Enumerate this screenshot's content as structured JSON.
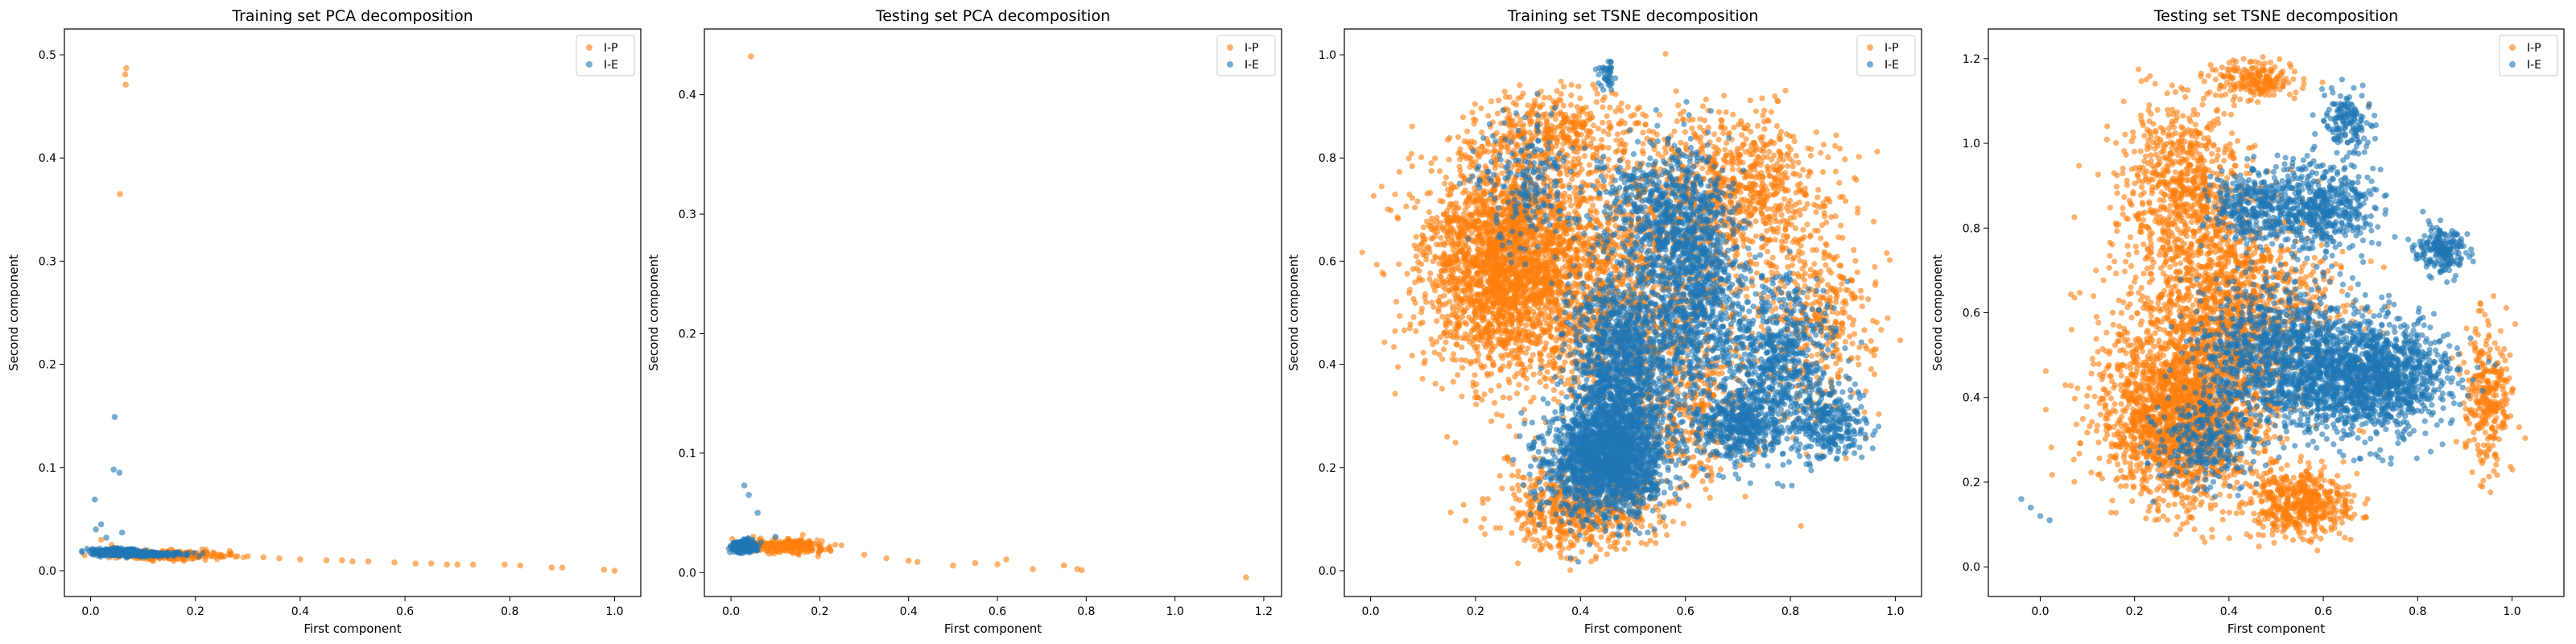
{
  "colors": {
    "ip": "#ff7f0e",
    "ie": "#1f77b4",
    "axis": "#000000",
    "legend_border": "#cccccc"
  },
  "chart_data": [
    {
      "type": "scatter",
      "title": "Training set PCA decomposition",
      "xlabel": "First component",
      "ylabel": "Second component",
      "xlim": [
        -0.05,
        1.05
      ],
      "ylim": [
        -0.025,
        0.525
      ],
      "xticks": [
        0.0,
        0.2,
        0.4,
        0.6,
        0.8,
        1.0
      ],
      "yticks": [
        0.0,
        0.1,
        0.2,
        0.3,
        0.4,
        0.5
      ],
      "grid": false,
      "legend_position": "top-right",
      "series": [
        {
          "name": "I-P",
          "color": "#ff7f0e",
          "points": [
            [
              0.068,
              0.487
            ],
            [
              0.066,
              0.481
            ],
            [
              0.067,
              0.471
            ],
            [
              0.056,
              0.365
            ],
            [
              0.02,
              0.03
            ],
            [
              0.04,
              0.025
            ],
            [
              0.05,
              0.022
            ],
            [
              0.08,
              0.02
            ],
            [
              0.1,
              0.019
            ],
            [
              0.12,
              0.018
            ],
            [
              0.15,
              0.017
            ],
            [
              0.18,
              0.016
            ],
            [
              0.2,
              0.016
            ],
            [
              0.22,
              0.015
            ],
            [
              0.25,
              0.015
            ],
            [
              0.28,
              0.014
            ],
            [
              0.3,
              0.014
            ],
            [
              0.33,
              0.013
            ],
            [
              0.36,
              0.012
            ],
            [
              0.4,
              0.011
            ],
            [
              0.45,
              0.01
            ],
            [
              0.48,
              0.01
            ],
            [
              0.5,
              0.009
            ],
            [
              0.53,
              0.009
            ],
            [
              0.58,
              0.008
            ],
            [
              0.62,
              0.007
            ],
            [
              0.65,
              0.007
            ],
            [
              0.68,
              0.006
            ],
            [
              0.7,
              0.006
            ],
            [
              0.73,
              0.006
            ],
            [
              0.79,
              0.006
            ],
            [
              0.82,
              0.005
            ],
            [
              0.88,
              0.003
            ],
            [
              0.9,
              0.003
            ],
            [
              0.98,
              0.001
            ],
            [
              1.0,
              0.0
            ]
          ],
          "clusters": [
            [
              0.15,
              0.015,
              0.1,
              0.004,
              240
            ]
          ]
        },
        {
          "name": "I-E",
          "color": "#1f77b4",
          "points": [
            [
              0.046,
              0.149
            ],
            [
              0.044,
              0.098
            ],
            [
              0.055,
              0.095
            ],
            [
              0.008,
              0.069
            ],
            [
              0.06,
              0.037
            ],
            [
              0.03,
              0.032
            ],
            [
              0.01,
              0.04
            ],
            [
              0.02,
              0.045
            ]
          ],
          "clusters": [
            [
              0.05,
              0.018,
              0.04,
              0.003,
              400
            ],
            [
              0.12,
              0.016,
              0.06,
              0.002,
              150
            ]
          ]
        }
      ]
    },
    {
      "type": "scatter",
      "title": "Testing set PCA decomposition",
      "xlabel": "First component",
      "ylabel": "Second component",
      "xlim": [
        -0.06,
        1.24
      ],
      "ylim": [
        -0.02,
        0.455
      ],
      "xticks": [
        0.0,
        0.2,
        0.4,
        0.6,
        0.8,
        1.0,
        1.2
      ],
      "yticks": [
        0.0,
        0.1,
        0.2,
        0.3,
        0.4
      ],
      "grid": false,
      "legend_position": "top-right",
      "series": [
        {
          "name": "I-P",
          "color": "#ff7f0e",
          "points": [
            [
              0.045,
              0.432
            ],
            [
              0.05,
              0.03
            ],
            [
              0.1,
              0.025
            ],
            [
              0.15,
              0.022
            ],
            [
              0.2,
              0.018
            ],
            [
              0.22,
              0.02
            ],
            [
              0.3,
              0.015
            ],
            [
              0.35,
              0.012
            ],
            [
              0.4,
              0.01
            ],
            [
              0.42,
              0.009
            ],
            [
              0.5,
              0.006
            ],
            [
              0.55,
              0.008
            ],
            [
              0.6,
              0.007
            ],
            [
              0.62,
              0.011
            ],
            [
              0.68,
              0.003
            ],
            [
              0.75,
              0.006
            ],
            [
              0.78,
              0.003
            ],
            [
              0.79,
              0.002
            ],
            [
              1.16,
              -0.004
            ]
          ],
          "clusters": [
            [
              0.12,
              0.022,
              0.08,
              0.005,
              220
            ]
          ]
        },
        {
          "name": "I-E",
          "color": "#1f77b4",
          "points": [
            [
              0.03,
              0.073
            ],
            [
              0.04,
              0.065
            ],
            [
              0.06,
              0.05
            ],
            [
              0.1,
              0.03
            ]
          ],
          "clusters": [
            [
              0.03,
              0.022,
              0.025,
              0.004,
              320
            ]
          ]
        }
      ]
    },
    {
      "type": "scatter",
      "title": "Training set TSNE decomposition",
      "xlabel": "First component",
      "ylabel": "Second component",
      "xlim": [
        -0.05,
        1.05
      ],
      "ylim": [
        -0.05,
        1.05
      ],
      "xticks": [
        0.0,
        0.2,
        0.4,
        0.6,
        0.8,
        1.0
      ],
      "yticks": [
        0.0,
        0.2,
        0.4,
        0.6,
        0.8,
        1.0
      ],
      "grid": false,
      "legend_position": "top-right",
      "series": [
        {
          "name": "I-P",
          "color": "#ff7f0e",
          "points": [],
          "clusters": [
            [
              0.25,
              0.6,
              0.14,
              0.18,
              2200
            ],
            [
              0.45,
              0.55,
              0.25,
              0.24,
              1800
            ],
            [
              0.4,
              0.12,
              0.14,
              0.08,
              600
            ],
            [
              0.7,
              0.75,
              0.15,
              0.14,
              700
            ],
            [
              0.85,
              0.5,
              0.1,
              0.2,
              400
            ],
            [
              0.35,
              0.85,
              0.15,
              0.07,
              400
            ],
            [
              0.6,
              0.3,
              0.12,
              0.12,
              300
            ]
          ]
        },
        {
          "name": "I-E",
          "color": "#1f77b4",
          "points": [],
          "clusters": [
            [
              0.45,
              0.22,
              0.1,
              0.1,
              1800
            ],
            [
              0.48,
              0.4,
              0.09,
              0.18,
              1300
            ],
            [
              0.62,
              0.55,
              0.08,
              0.2,
              900
            ],
            [
              0.78,
              0.4,
              0.1,
              0.15,
              700
            ],
            [
              0.7,
              0.28,
              0.06,
              0.06,
              400
            ],
            [
              0.55,
              0.7,
              0.1,
              0.12,
              500
            ],
            [
              0.88,
              0.28,
              0.06,
              0.06,
              250
            ],
            [
              0.3,
              0.75,
              0.08,
              0.12,
              200
            ],
            [
              0.45,
              0.96,
              0.015,
              0.02,
              40
            ]
          ]
        }
      ]
    },
    {
      "type": "scatter",
      "title": "Testing set TSNE decomposition",
      "xlabel": "First component",
      "ylabel": "Second component",
      "xlim": [
        -0.11,
        1.11
      ],
      "ylim": [
        -0.07,
        1.27
      ],
      "xticks": [
        0.0,
        0.2,
        0.4,
        0.6,
        0.8,
        1.0
      ],
      "yticks": [
        0.0,
        0.2,
        0.4,
        0.6,
        0.8,
        1.0,
        1.2
      ],
      "grid": false,
      "legend_position": "top-right",
      "series": [
        {
          "name": "I-P",
          "color": "#ff7f0e",
          "points": [],
          "clusters": [
            [
              0.3,
              0.35,
              0.15,
              0.18,
              1900
            ],
            [
              0.4,
              0.6,
              0.2,
              0.22,
              1500
            ],
            [
              0.3,
              0.9,
              0.12,
              0.18,
              700
            ],
            [
              0.55,
              0.15,
              0.1,
              0.08,
              500
            ],
            [
              0.95,
              0.4,
              0.05,
              0.15,
              300
            ],
            [
              0.45,
              1.15,
              0.08,
              0.04,
              200
            ]
          ]
        },
        {
          "name": "I-E",
          "color": "#1f77b4",
          "points": [
            [
              -0.04,
              0.16
            ],
            [
              -0.02,
              0.14
            ],
            [
              0.0,
              0.12
            ],
            [
              0.02,
              0.11
            ]
          ],
          "clusters": [
            [
              0.7,
              0.45,
              0.15,
              0.12,
              1400
            ],
            [
              0.5,
              0.5,
              0.15,
              0.15,
              1000
            ],
            [
              0.6,
              0.85,
              0.1,
              0.1,
              500
            ],
            [
              0.45,
              0.85,
              0.08,
              0.08,
              300
            ],
            [
              0.85,
              0.75,
              0.05,
              0.05,
              200
            ],
            [
              0.65,
              1.05,
              0.05,
              0.06,
              150
            ],
            [
              0.35,
              0.3,
              0.1,
              0.1,
              300
            ]
          ]
        }
      ]
    }
  ]
}
